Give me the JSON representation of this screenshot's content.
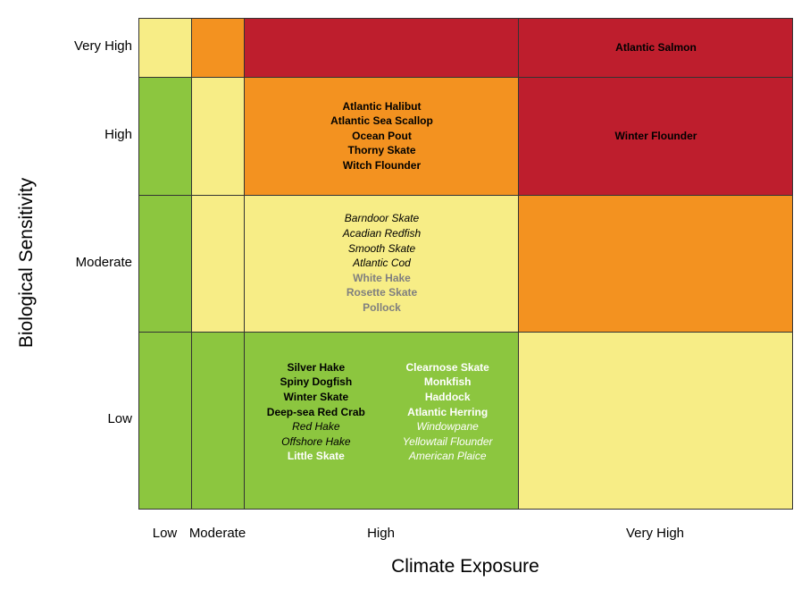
{
  "colors": {
    "red": "#be1e2d",
    "orange": "#f39220",
    "yellow": "#f7ed86",
    "green": "#8cc63f"
  },
  "chart_data": {
    "type": "heatmap",
    "xlabel": "Climate Exposure",
    "ylabel": "Biological Sensitivity",
    "x_categories": [
      "Low",
      "Moderate",
      "High",
      "Very High"
    ],
    "y_categories": [
      "Low",
      "Moderate",
      "High",
      "Very High"
    ],
    "cells": [
      {
        "x": "Low",
        "y": "Very High",
        "color": "yellow",
        "species": []
      },
      {
        "x": "Moderate",
        "y": "Very High",
        "color": "orange",
        "species": []
      },
      {
        "x": "High",
        "y": "Very High",
        "color": "red",
        "species": []
      },
      {
        "x": "Very High",
        "y": "Very High",
        "color": "red",
        "species": [
          {
            "name": "Atlantic Salmon",
            "style": "bold",
            "color": "black"
          }
        ]
      },
      {
        "x": "Low",
        "y": "High",
        "color": "green",
        "species": []
      },
      {
        "x": "Moderate",
        "y": "High",
        "color": "yellow",
        "species": []
      },
      {
        "x": "High",
        "y": "High",
        "color": "orange",
        "species": [
          {
            "name": "Atlantic Halibut",
            "style": "bold",
            "color": "black"
          },
          {
            "name": "Atlantic Sea Scallop",
            "style": "bold",
            "color": "black"
          },
          {
            "name": "Ocean Pout",
            "style": "bold",
            "color": "black"
          },
          {
            "name": "Thorny Skate",
            "style": "bold",
            "color": "black"
          },
          {
            "name": "Witch Flounder",
            "style": "bold",
            "color": "black"
          }
        ]
      },
      {
        "x": "Very High",
        "y": "High",
        "color": "red",
        "species": [
          {
            "name": "Winter Flounder",
            "style": "bold",
            "color": "black"
          }
        ]
      },
      {
        "x": "Low",
        "y": "Moderate",
        "color": "green",
        "species": []
      },
      {
        "x": "Moderate",
        "y": "Moderate",
        "color": "yellow",
        "species": []
      },
      {
        "x": "High",
        "y": "Moderate",
        "color": "yellow",
        "species": [
          {
            "name": "Barndoor Skate",
            "style": "italic",
            "color": "black"
          },
          {
            "name": "Acadian Redfish",
            "style": "italic",
            "color": "black"
          },
          {
            "name": "Smooth Skate",
            "style": "italic",
            "color": "black"
          },
          {
            "name": "Atlantic Cod",
            "style": "italic",
            "color": "black"
          },
          {
            "name": "White Hake",
            "style": "bold",
            "color": "gray"
          },
          {
            "name": "Rosette Skate",
            "style": "bold",
            "color": "gray"
          },
          {
            "name": "Pollock",
            "style": "bold",
            "color": "gray"
          }
        ]
      },
      {
        "x": "Very High",
        "y": "Moderate",
        "color": "orange",
        "species": []
      },
      {
        "x": "Low",
        "y": "Low",
        "color": "green",
        "species": []
      },
      {
        "x": "Moderate",
        "y": "Low",
        "color": "green",
        "species": []
      },
      {
        "x": "High",
        "y": "Low",
        "color": "green",
        "columns": [
          [
            {
              "name": "Silver Hake",
              "style": "bold",
              "color": "black"
            },
            {
              "name": "Spiny Dogfish",
              "style": "bold",
              "color": "black"
            },
            {
              "name": "Winter Skate",
              "style": "bold",
              "color": "black"
            },
            {
              "name": "Deep-sea Red Crab",
              "style": "bold",
              "color": "black"
            },
            {
              "name": "Red Hake",
              "style": "italic",
              "color": "black"
            },
            {
              "name": "Offshore Hake",
              "style": "italic",
              "color": "black"
            },
            {
              "name": "Little Skate",
              "style": "bold",
              "color": "white"
            }
          ],
          [
            {
              "name": "Clearnose Skate",
              "style": "bold",
              "color": "white"
            },
            {
              "name": "Monkfish",
              "style": "bold",
              "color": "white"
            },
            {
              "name": "Haddock",
              "style": "bold",
              "color": "white"
            },
            {
              "name": "Atlantic Herring",
              "style": "bold",
              "color": "white"
            },
            {
              "name": "Windowpane",
              "style": "italic",
              "color": "white"
            },
            {
              "name": "Yellowtail Flounder",
              "style": "italic",
              "color": "white"
            },
            {
              "name": "American Plaice",
              "style": "italic",
              "color": "white"
            }
          ]
        ]
      },
      {
        "x": "Very High",
        "y": "Low",
        "color": "yellow",
        "species": []
      }
    ]
  }
}
